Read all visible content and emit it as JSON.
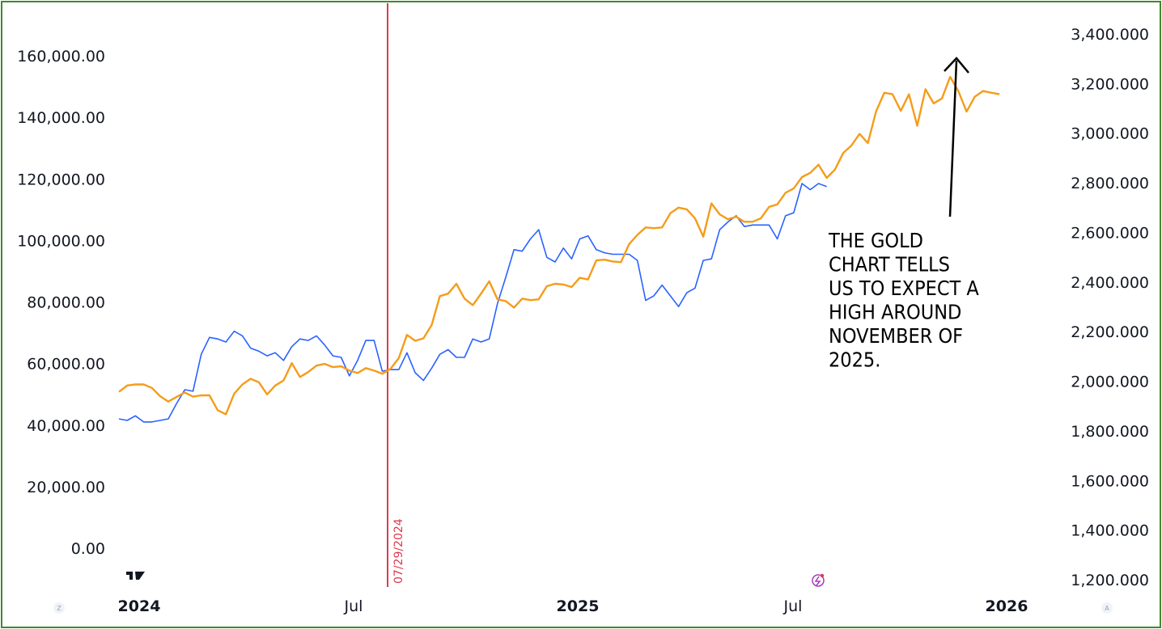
{
  "chart_data": {
    "type": "line",
    "left_axis": {
      "ticks": [
        "160,000.00",
        "140,000.00",
        "120,000.00",
        "100,000.00",
        "80,000.00",
        "60,000.00",
        "40,000.00",
        "20,000.00",
        "0.00"
      ],
      "range": [
        0,
        160000
      ]
    },
    "right_axis": {
      "ticks": [
        "3,400.000",
        "3,200.000",
        "3,000.000",
        "2,800.000",
        "2,600.000",
        "2,400.000",
        "2,200.000",
        "2,000.000",
        "1,800.000",
        "1,600.000",
        "1,400.000",
        "1,200.000"
      ],
      "range": [
        1200,
        3400
      ]
    },
    "x_axis": {
      "ticks": [
        {
          "label": "2024",
          "bold": true
        },
        {
          "label": "Jul",
          "bold": false
        },
        {
          "label": "2025",
          "bold": true
        },
        {
          "label": "Jul",
          "bold": false
        },
        {
          "label": "2026",
          "bold": true
        }
      ]
    },
    "series": [
      {
        "axis": "left",
        "color": "#2962ff",
        "values": [
          42000,
          41500,
          43000,
          41000,
          41000,
          41500,
          42000,
          47000,
          51500,
          51000,
          63000,
          68500,
          68000,
          67000,
          70500,
          69000,
          65000,
          64000,
          62500,
          63500,
          61000,
          65500,
          68000,
          67500,
          69000,
          66000,
          62500,
          62000,
          56000,
          61000,
          67500,
          67500,
          57500,
          58000,
          58000,
          63500,
          57000,
          54500,
          58500,
          63000,
          64500,
          62000,
          62000,
          68000,
          67000,
          68000,
          79500,
          88000,
          97000,
          96500,
          100500,
          103500,
          94500,
          93000,
          97500,
          94000,
          100500,
          101500,
          97000,
          96000,
          95500,
          95500,
          95500,
          93500,
          80500,
          82000,
          85500,
          82000,
          78500,
          83000,
          84500,
          93500,
          94000,
          103500,
          106000,
          108000,
          104500,
          105000,
          105000,
          105000,
          100500,
          108000,
          109000,
          118500,
          116500,
          118500,
          117500
        ]
      },
      {
        "axis": "right",
        "color": "#f59c1a",
        "values": [
          1957,
          1983,
          1987,
          1987,
          1973,
          1940,
          1918,
          1937,
          1955,
          1938,
          1943,
          1943,
          1883,
          1867,
          1950,
          1987,
          2010,
          1996,
          1947,
          1983,
          2003,
          2073,
          2017,
          2037,
          2063,
          2070,
          2057,
          2060,
          2043,
          2033,
          2053,
          2043,
          2030,
          2050,
          2093,
          2187,
          2163,
          2173,
          2227,
          2343,
          2353,
          2393,
          2333,
          2307,
          2353,
          2403,
          2330,
          2323,
          2297,
          2333,
          2327,
          2330,
          2383,
          2393,
          2390,
          2380,
          2417,
          2410,
          2487,
          2490,
          2483,
          2480,
          2553,
          2590,
          2620,
          2617,
          2620,
          2677,
          2700,
          2693,
          2657,
          2583,
          2717,
          2673,
          2653,
          2663,
          2643,
          2643,
          2657,
          2703,
          2713,
          2760,
          2777,
          2823,
          2840,
          2873,
          2820,
          2853,
          2920,
          2950,
          2997,
          2960,
          3087,
          3163,
          3157,
          3090,
          3157,
          3030,
          3177,
          3120,
          3140,
          3227,
          3170,
          3087,
          3147,
          3170,
          3163,
          3157
        ]
      }
    ],
    "vertical_marker": {
      "label": "07/29/2024",
      "color": "#e0384e"
    },
    "annotation": {
      "lines": [
        "THE GOLD",
        "CHART TELLS",
        "US TO EXPECT A",
        "HIGH AROUND",
        "NOVEMBER OF",
        "2025."
      ],
      "color": "#000000"
    }
  },
  "corner_labels": {
    "left": "Z",
    "right": "A"
  }
}
